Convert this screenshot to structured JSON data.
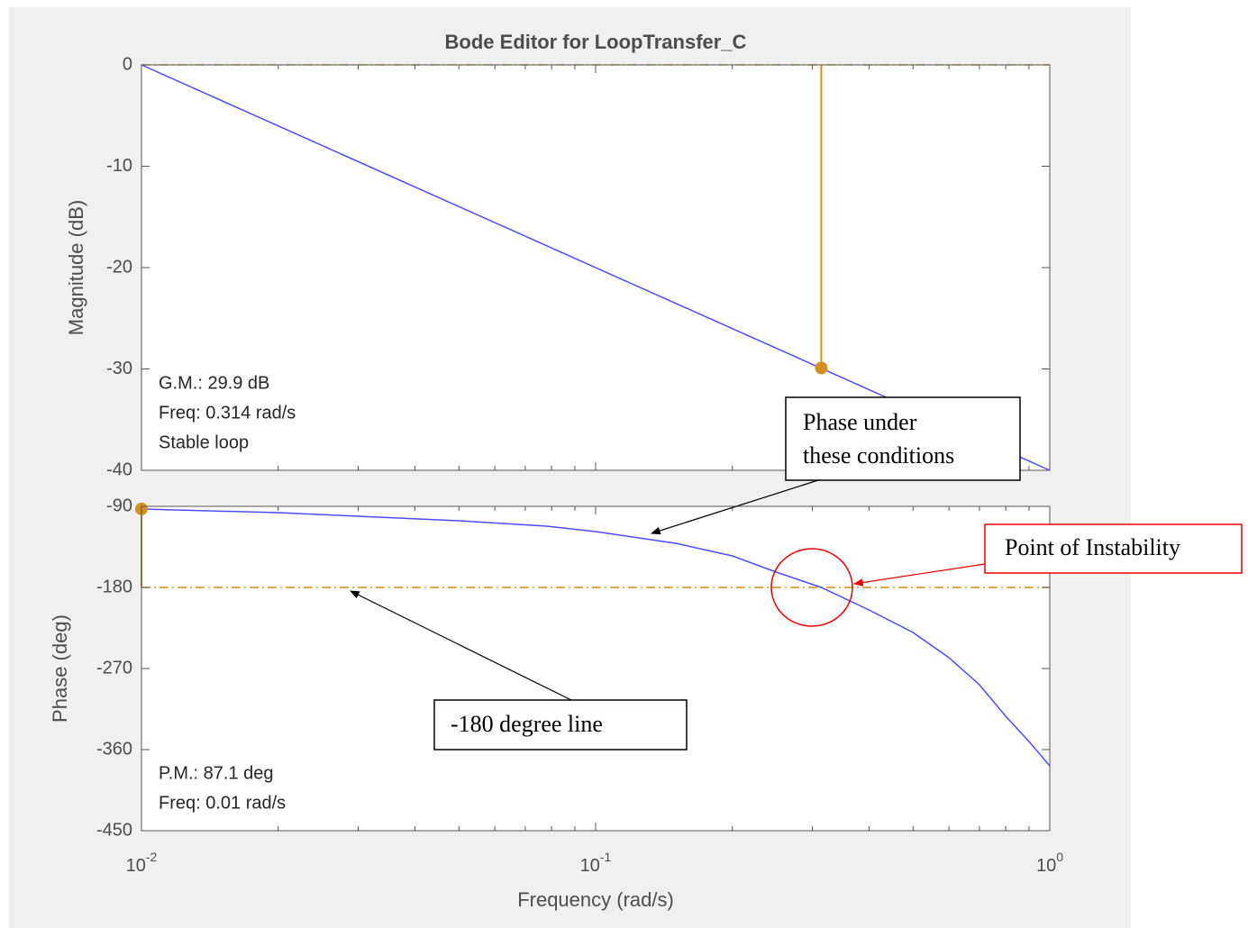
{
  "chart_data": [
    {
      "type": "line",
      "title": "Bode Editor for LoopTransfer_C",
      "ylabel": "Magnitude (dB)",
      "xscale": "log",
      "xlim": [
        0.01,
        1
      ],
      "xticks": [
        0.01,
        0.1,
        1
      ],
      "ylim": [
        -40,
        0
      ],
      "yticks": [
        -40,
        -30,
        -20,
        -10,
        0
      ],
      "x": [
        0.01,
        1
      ],
      "series": [
        {
          "color": "#4d4dff",
          "values": [
            0,
            -40
          ]
        }
      ],
      "reference_line": 0,
      "reference_color": "#d4901e",
      "margin_marker": {
        "x": 0.314,
        "y": -29.9
      },
      "annotations": [
        "G.M.: 29.9 dB",
        "Freq: 0.314 rad/s",
        "Stable loop"
      ]
    },
    {
      "type": "line",
      "ylabel": "Phase (deg)",
      "xlabel": "Frequency (rad/s)",
      "xscale": "log",
      "xlim": [
        0.01,
        1
      ],
      "xticks": [
        {
          "value": 0.01,
          "label": "10",
          "exponent": "-2"
        },
        {
          "value": 0.1,
          "label": "10",
          "exponent": "-1"
        },
        {
          "value": 1,
          "label": "10",
          "exponent": "0"
        }
      ],
      "ylim": [
        -450,
        -90
      ],
      "yticks": [
        -450,
        -360,
        -270,
        -180,
        -90
      ],
      "x": [
        0.01,
        0.02,
        0.05,
        0.078,
        0.1,
        0.15,
        0.2,
        0.25,
        0.314,
        0.4,
        0.5,
        0.6,
        0.7,
        0.8,
        0.9,
        1
      ],
      "series": [
        {
          "color": "#4d4dff",
          "values": [
            -93,
            -97,
            -106,
            -112,
            -118,
            -131,
            -145,
            -163,
            -180,
            -205,
            -230,
            -258,
            -288,
            -323,
            -351,
            -378
          ]
        }
      ],
      "reference_line": -180,
      "reference_color": "#d4901e",
      "margin_marker": {
        "x": 0.01,
        "y": -92.9
      },
      "annotations": [
        "P.M.: 87.1 deg",
        "Freq: 0.01 rad/s"
      ]
    }
  ],
  "callouts": [
    {
      "lines": [
        "Phase under",
        "these conditions"
      ]
    },
    {
      "lines": [
        "Point of Instability"
      ]
    },
    {
      "lines": [
        "-180 degree line"
      ]
    }
  ]
}
